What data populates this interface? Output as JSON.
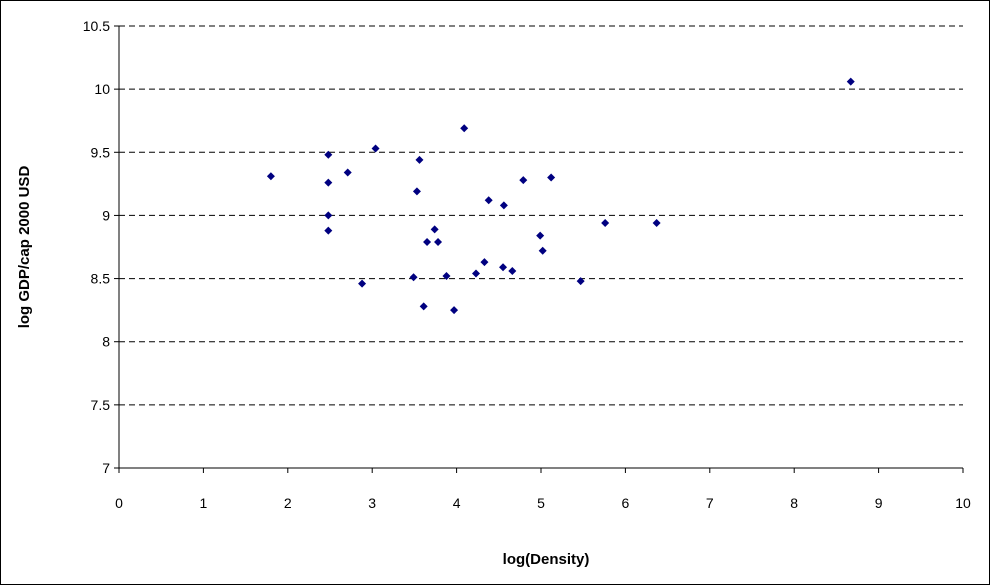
{
  "chart_data": {
    "type": "scatter",
    "title": "",
    "xlabel": "log(Density)",
    "ylabel": "log GDP/cap 2000 USD",
    "xlim": [
      0,
      10
    ],
    "ylim": [
      7,
      10.5
    ],
    "x_ticks": [
      "0",
      "1",
      "2",
      "3",
      "4",
      "5",
      "6",
      "7",
      "8",
      "9",
      "10"
    ],
    "y_ticks": [
      "7",
      "7.5",
      "8",
      "8.5",
      "9",
      "9.5",
      "10",
      "10.5"
    ],
    "grid": "horizontal dashed",
    "legend": "none",
    "marker": "diamond",
    "marker_color": "#000080",
    "points": [
      {
        "x": 1.8,
        "y": 9.31
      },
      {
        "x": 2.48,
        "y": 9.48
      },
      {
        "x": 2.48,
        "y": 9.26
      },
      {
        "x": 2.48,
        "y": 9.0
      },
      {
        "x": 2.48,
        "y": 8.88
      },
      {
        "x": 2.71,
        "y": 9.34
      },
      {
        "x": 2.88,
        "y": 8.46
      },
      {
        "x": 3.04,
        "y": 9.53
      },
      {
        "x": 3.49,
        "y": 8.51
      },
      {
        "x": 3.53,
        "y": 9.19
      },
      {
        "x": 3.56,
        "y": 9.44
      },
      {
        "x": 3.61,
        "y": 8.28
      },
      {
        "x": 3.65,
        "y": 8.79
      },
      {
        "x": 3.74,
        "y": 8.89
      },
      {
        "x": 3.78,
        "y": 8.79
      },
      {
        "x": 3.88,
        "y": 8.52
      },
      {
        "x": 3.97,
        "y": 8.25
      },
      {
        "x": 4.09,
        "y": 9.69
      },
      {
        "x": 4.23,
        "y": 8.54
      },
      {
        "x": 4.33,
        "y": 8.63
      },
      {
        "x": 4.38,
        "y": 9.12
      },
      {
        "x": 4.55,
        "y": 8.59
      },
      {
        "x": 4.56,
        "y": 9.08
      },
      {
        "x": 4.66,
        "y": 8.56
      },
      {
        "x": 4.79,
        "y": 9.28
      },
      {
        "x": 4.99,
        "y": 8.84
      },
      {
        "x": 5.02,
        "y": 8.72
      },
      {
        "x": 5.12,
        "y": 9.3
      },
      {
        "x": 5.47,
        "y": 8.48
      },
      {
        "x": 5.76,
        "y": 8.94
      },
      {
        "x": 6.37,
        "y": 8.94
      },
      {
        "x": 8.67,
        "y": 10.06
      }
    ]
  }
}
